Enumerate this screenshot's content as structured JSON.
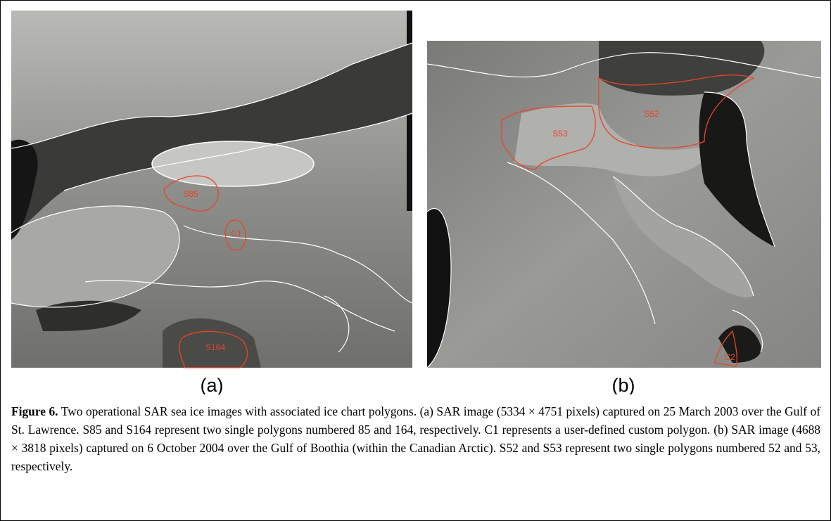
{
  "figure": {
    "panels": [
      {
        "label": "(a)",
        "polygons": [
          "S85",
          "C1",
          "S164"
        ]
      },
      {
        "label": "(b)",
        "polygons": [
          "S52",
          "S53",
          "C2"
        ]
      }
    ],
    "caption": {
      "label": "Figure 6.",
      "text": "Two operational SAR sea ice images with associated ice chart polygons. (a) SAR image (5334 × 4751 pixels) captured on 25 March 2003 over the Gulf of St. Lawrence. S85 and S164 represent two single polygons numbered 85 and 164, respectively. C1 represents a user-defined custom polygon. (b) SAR image (4688 × 3818 pixels) captured on 6 October 2004 over the Gulf of Boothia (within the Canadian Arctic). S52 and S53 represent two single polygons numbered 52 and 53, respectively."
    }
  }
}
